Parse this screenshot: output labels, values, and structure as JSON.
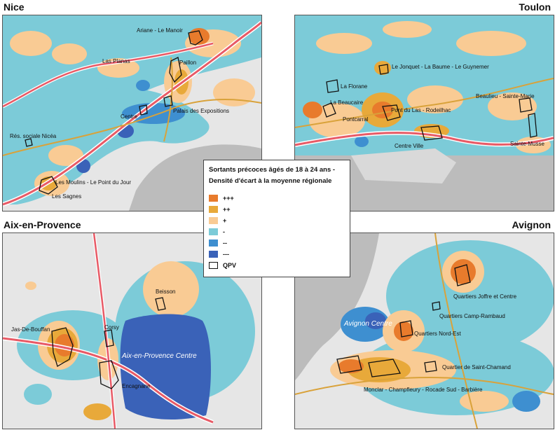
{
  "titles": {
    "nice": "Nice",
    "toulon": "Toulon",
    "aix": "Aix-en-Provence",
    "avignon": "Avignon"
  },
  "legend": {
    "title_line1": "Sortants précoces âgés de 18 à 24 ans -",
    "title_line2": "Densité d'écart à la moyenne régionale",
    "items": [
      {
        "label": "+++",
        "color": "#e87b2c"
      },
      {
        "label": "++",
        "color": "#e8a93a"
      },
      {
        "label": "+",
        "color": "#f9cb94"
      },
      {
        "label": "-",
        "color": "#7ccbd8"
      },
      {
        "label": "--",
        "color": "#3e8fd0"
      },
      {
        "label": "---",
        "color": "#3a62b8"
      },
      {
        "label": "QPV",
        "color": "#ffffff"
      }
    ]
  },
  "maps": {
    "nice": {
      "labels": [
        "Ariane - Le Manoir",
        "Las Planas",
        "Paillon",
        "Centre",
        "Palais des Expositions",
        "Rés. sociale Nicéa",
        "Les Moulins - Le Point du Jour",
        "Les Sagnes"
      ]
    },
    "toulon": {
      "labels": [
        "Le Jonquet - La Baume - Le Guynemer",
        "La Florane",
        "Beaulieu - Sainte-Marie",
        "La Beaucaire",
        "Pontcarral",
        "Pont du Las - Rodeilhac",
        "Centre Ville",
        "Sainte-Musse"
      ]
    },
    "aix": {
      "labels": [
        "Beisson",
        "Jas-De-Bouffan",
        "Corsy",
        "Aix-en-Provence Centre",
        "Encagnane"
      ]
    },
    "avignon": {
      "labels": [
        "Quartiers Joffre et Centre",
        "Quartiers Camp-Rambaud",
        "Avignon Centre",
        "Quartiers Nord-Est",
        "Quartier de Saint-Chamand",
        "Monclar - Champfleury - Rocade Sud - Barbière"
      ]
    }
  }
}
